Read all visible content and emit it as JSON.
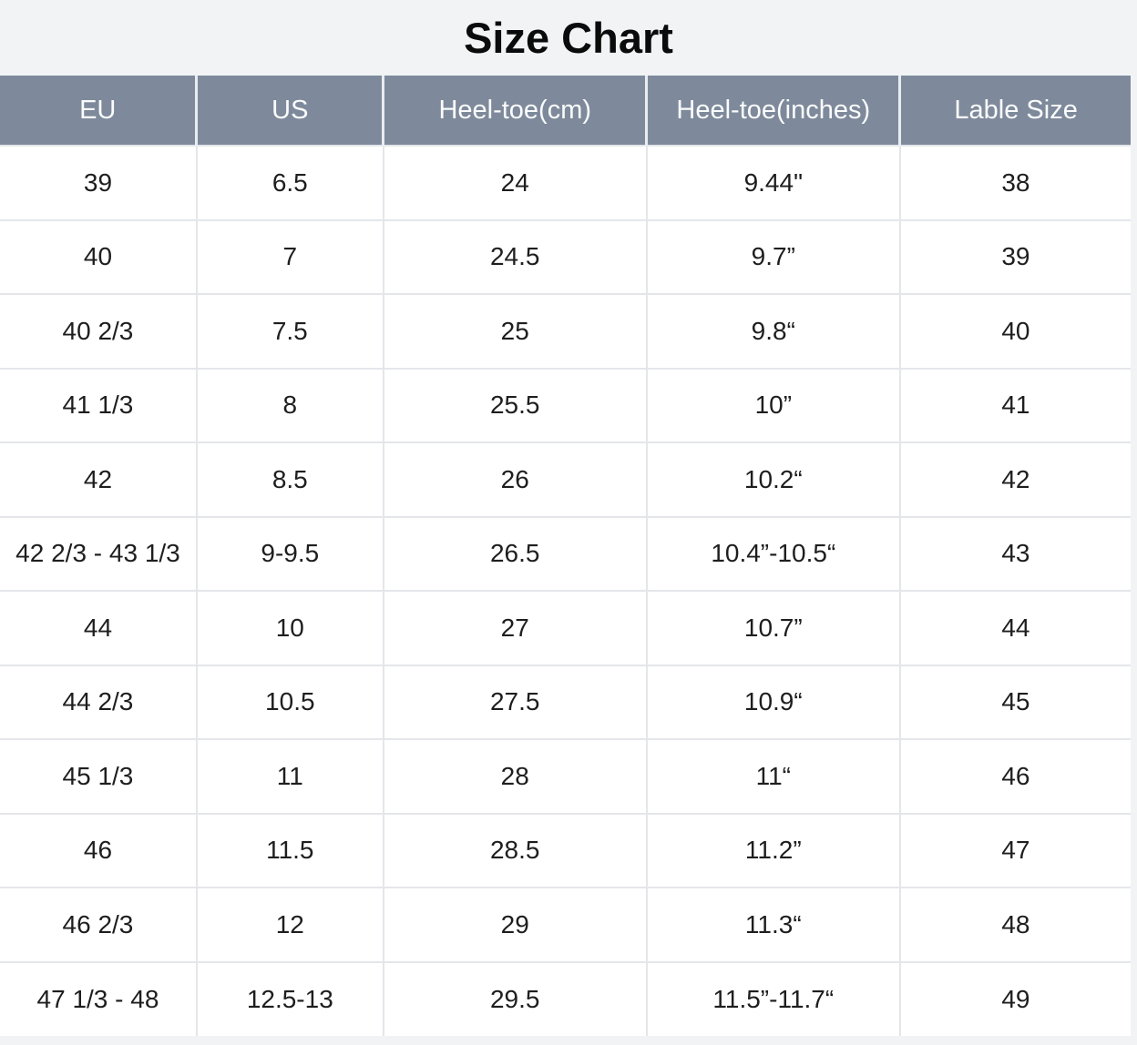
{
  "page": {
    "title": "Size Chart"
  },
  "colors": {
    "page_background": "#F2F3F5",
    "header_background": "#7E8A9B",
    "header_text": "#FAFBFC",
    "row_background": "#FFFFFF",
    "body_text": "#1E1E1E",
    "grid_border": "#E4E6EA",
    "title_text": "#0B0B0B"
  },
  "chart_data": {
    "type": "table",
    "title": "Size Chart",
    "columns": [
      "EU",
      "US",
      "Heel-toe(cm)",
      "Heel-toe(inches)",
      "Lable Size"
    ],
    "rows": [
      [
        "39",
        "6.5",
        "24",
        "9.44\"",
        "38"
      ],
      [
        "40",
        "7",
        "24.5",
        "9.7”",
        "39"
      ],
      [
        "40 2/3",
        "7.5",
        "25",
        "9.8“",
        "40"
      ],
      [
        "41 1/3",
        "8",
        "25.5",
        "10”",
        "41"
      ],
      [
        "42",
        "8.5",
        "26",
        "10.2“",
        "42"
      ],
      [
        "42 2/3 - 43 1/3",
        "9-9.5",
        "26.5",
        "10.4”-10.5“",
        "43"
      ],
      [
        "44",
        "10",
        "27",
        "10.7”",
        "44"
      ],
      [
        "44 2/3",
        "10.5",
        "27.5",
        "10.9“",
        "45"
      ],
      [
        "45 1/3",
        "11",
        "28",
        "11“",
        "46"
      ],
      [
        "46",
        "11.5",
        "28.5",
        "11.2”",
        "47"
      ],
      [
        "46 2/3",
        "12",
        "29",
        "11.3“",
        "48"
      ],
      [
        "47 1/3 - 48",
        "12.5-13",
        "29.5",
        "11.5”-11.7“",
        "49"
      ]
    ],
    "layout": {
      "grid": true,
      "header_position": "top",
      "cell_alignment": "center"
    }
  }
}
